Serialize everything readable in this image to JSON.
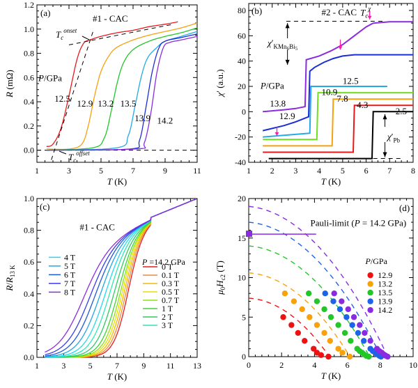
{
  "chart_data": [
    {
      "id": "a",
      "type": "line",
      "panel_label": "(a)",
      "title": "#1 - CAC",
      "xlabel": "T (K)",
      "ylabel": "R (mΩ)",
      "xlim": [
        1,
        11
      ],
      "ylim": [
        -0.1,
        1.2
      ],
      "xticks": [
        1,
        3,
        5,
        7,
        9,
        11
      ],
      "yticks": [
        0.0,
        0.2,
        0.4,
        0.6,
        0.8,
        1.0,
        1.2
      ],
      "ytick_labels": [
        "0.0",
        "0.2",
        "0.4",
        "0.6",
        "0.8",
        "1.0",
        "1.2"
      ],
      "legend_title": "P/GPa",
      "annotations": [
        "Tc onset",
        "Tc offset"
      ],
      "series": [
        {
          "name": "12.5",
          "color": "#e8191c",
          "x": [
            1.6,
            2.0,
            2.5,
            3.0,
            3.5,
            3.9,
            4.3,
            5.0,
            6.0,
            7.0,
            8.0,
            9.0,
            9.8
          ],
          "y": [
            0.03,
            0.05,
            0.18,
            0.45,
            0.75,
            0.88,
            0.91,
            0.94,
            0.97,
            0.99,
            1.02,
            1.04,
            1.06
          ]
        },
        {
          "name": "12.9",
          "color": "#f5a00f",
          "x": [
            1.6,
            3.0,
            3.8,
            4.2,
            4.6,
            5.0,
            5.5,
            6.0,
            7.0,
            8.0,
            9.0,
            10.0,
            11.0
          ],
          "y": [
            0.01,
            0.01,
            0.05,
            0.2,
            0.45,
            0.65,
            0.78,
            0.85,
            0.91,
            0.95,
            0.98,
            1.01,
            1.05
          ]
        },
        {
          "name": "13.2",
          "color": "#22c629",
          "x": [
            1.6,
            4.5,
            5.2,
            5.6,
            6.0,
            6.4,
            7.0,
            8.0,
            9.0,
            10.0,
            11.0
          ],
          "y": [
            0.0,
            0.02,
            0.1,
            0.3,
            0.55,
            0.72,
            0.83,
            0.9,
            0.94,
            0.97,
            1.01
          ]
        },
        {
          "name": "13.5",
          "color": "#22a9e8",
          "x": [
            1.6,
            6.0,
            6.7,
            7.1,
            7.5,
            7.9,
            8.5,
            9.0,
            10.0,
            11.0
          ],
          "y": [
            0.0,
            0.02,
            0.12,
            0.35,
            0.6,
            0.76,
            0.85,
            0.9,
            0.94,
            0.98
          ]
        },
        {
          "name": "13.9",
          "color": "#1a2ed6",
          "x": [
            1.6,
            6.8,
            7.4,
            7.8,
            8.2,
            8.6,
            9.0,
            10.0,
            11.0
          ],
          "y": [
            0.0,
            0.01,
            0.08,
            0.35,
            0.65,
            0.84,
            0.9,
            0.93,
            0.96
          ]
        },
        {
          "name": "14.2",
          "color": "#8a2be2",
          "x": [
            1.6,
            7.2,
            7.7,
            8.1,
            8.5,
            8.9,
            9.3,
            10.0,
            11.0
          ],
          "y": [
            0.0,
            0.01,
            0.06,
            0.3,
            0.65,
            0.85,
            0.89,
            0.91,
            0.94
          ]
        }
      ]
    },
    {
      "id": "b",
      "type": "line",
      "panel_label": "(b)",
      "title": "#2 - CAC",
      "xlabel": "T (K)",
      "ylabel": "χ' (a.u.)",
      "xlim": [
        1,
        8
      ],
      "ylim": [
        -40,
        80
      ],
      "xticks": [
        1,
        2,
        3,
        4,
        5,
        6,
        7,
        8
      ],
      "yticks": [
        -40,
        -20,
        0,
        20,
        40,
        60,
        80
      ],
      "legend_title": "P/GPa",
      "annotations": [
        "Tc χ",
        "χ'KMn6Bi5",
        "χ'Pb"
      ],
      "series": [
        {
          "name": "2.5",
          "color": "#000000",
          "x": [
            1.85,
            6.25,
            6.3,
            8.0
          ],
          "y": [
            -37,
            -37,
            0,
            0
          ]
        },
        {
          "name": "4.3",
          "color": "#e8191c",
          "x": [
            1.6,
            5.45,
            5.5,
            8.0
          ],
          "y": [
            -32,
            -32,
            5,
            5
          ]
        },
        {
          "name": "7.8",
          "color": "#f5a00f",
          "x": [
            1.6,
            4.55,
            4.6,
            8.0
          ],
          "y": [
            -27,
            -27,
            10,
            10
          ]
        },
        {
          "name": "10.9",
          "color": "#6fe01c",
          "x": [
            1.6,
            3.9,
            3.95,
            8.0
          ],
          "y": [
            -22,
            -22,
            15,
            15
          ]
        },
        {
          "name": "12.5",
          "color": "#22a9e8",
          "x": [
            1.6,
            3.6,
            3.65,
            6.9
          ],
          "y": [
            -20,
            -17,
            20,
            20
          ]
        },
        {
          "name": "12.9",
          "color": "#1a2ed6",
          "x": [
            1.6,
            2.5,
            3.0,
            3.55,
            3.6,
            3.8,
            4.2,
            4.6,
            5.0,
            5.5,
            6.0,
            8.0
          ],
          "y": [
            -15,
            -11,
            -8,
            -4,
            32,
            35,
            39,
            42,
            44,
            45,
            45,
            45
          ]
        },
        {
          "name": "13.8",
          "color": "#8a2be2",
          "x": [
            1.6,
            2.5,
            3.0,
            3.4,
            3.45,
            4.0,
            4.5,
            5.0,
            5.5,
            6.0,
            6.3,
            7.0,
            8.0
          ],
          "y": [
            0,
            1.5,
            2.5,
            4,
            41,
            44,
            48,
            53,
            60,
            67,
            70,
            71,
            71
          ]
        }
      ]
    },
    {
      "id": "c",
      "type": "line",
      "panel_label": "(c)",
      "title": "#1 - CAC",
      "xlabel": "T (K)",
      "ylabel": "R/R13 K",
      "xlim": [
        1,
        13
      ],
      "ylim": [
        0,
        1.0
      ],
      "xticks": [
        1,
        3,
        5,
        7,
        9,
        11,
        13
      ],
      "yticks": [
        0.0,
        0.2,
        0.4,
        0.6,
        0.8,
        1.0
      ],
      "ytick_labels": [
        "0.0",
        "0.2",
        "0.4",
        "0.6",
        "0.8",
        "1.0"
      ],
      "legend_title": "P = 14.2 GPa",
      "series": [
        {
          "name": "0 T",
          "color": "#e8191c",
          "tc": 8.3
        },
        {
          "name": "0.1 T",
          "color": "#f08a3a",
          "tc": 8.15
        },
        {
          "name": "0.3 T",
          "color": "#f5b800",
          "tc": 8.0
        },
        {
          "name": "0.5 T",
          "color": "#e6e000",
          "tc": 7.85
        },
        {
          "name": "0.7 T",
          "color": "#8ee010",
          "tc": 7.7
        },
        {
          "name": "1 T",
          "color": "#3cd630",
          "tc": 7.5
        },
        {
          "name": "2 T",
          "color": "#30c864",
          "tc": 7.2
        },
        {
          "name": "3 T",
          "color": "#2ee8b0",
          "tc": 6.85
        },
        {
          "name": "4 T",
          "color": "#22d8f0",
          "tc": 6.5
        },
        {
          "name": "5 T",
          "color": "#1ea6e8",
          "tc": 6.1
        },
        {
          "name": "6 T",
          "color": "#1e5ad6",
          "tc": 5.7
        },
        {
          "name": "7 T",
          "color": "#3a3ae8",
          "tc": 5.3
        },
        {
          "name": "8 T",
          "color": "#8a2be2",
          "tc": 4.8
        }
      ]
    },
    {
      "id": "d",
      "type": "scatter",
      "panel_label": "(d)",
      "xlabel": "T (K)",
      "ylabel": "μ0Hc2 (T)",
      "xlim": [
        0,
        10
      ],
      "ylim": [
        0,
        20
      ],
      "xticks": [
        0,
        2,
        4,
        6,
        8,
        10
      ],
      "yticks": [
        0,
        5,
        10,
        15,
        20
      ],
      "legend_title": "P/GPa",
      "pauli_limit": {
        "label": "Pauli-limit (P = 14.2 GPa)",
        "value": 15.5,
        "x_end": 4.1,
        "color": "#8a2be2"
      },
      "series": [
        {
          "name": "12.9",
          "color": "#ee1111",
          "hc2_0": 7.4,
          "tc": 4.9,
          "points": [
            [
              2.1,
              5
            ],
            [
              2.6,
              4
            ],
            [
              3.0,
              3
            ],
            [
              3.4,
              2
            ],
            [
              3.95,
              1
            ],
            [
              4.15,
              0.5
            ],
            [
              4.4,
              0.2
            ],
            [
              4.85,
              0
            ]
          ]
        },
        {
          "name": "13.2",
          "color": "#f7a20c",
          "hc2_0": 10.6,
          "tc": 6.15,
          "points": [
            [
              2.2,
              8
            ],
            [
              2.75,
              7
            ],
            [
              3.25,
              6
            ],
            [
              3.7,
              5
            ],
            [
              4.15,
              4
            ],
            [
              4.6,
              3
            ],
            [
              4.95,
              2
            ],
            [
              5.45,
              1
            ],
            [
              5.7,
              0.5
            ],
            [
              6.15,
              0
            ]
          ]
        },
        {
          "name": "13.5",
          "color": "#22c628",
          "hc2_0": 14.0,
          "tc": 7.35,
          "points": [
            [
              3.65,
              8
            ],
            [
              4.15,
              7
            ],
            [
              4.6,
              6
            ],
            [
              5.0,
              5
            ],
            [
              5.45,
              4
            ],
            [
              5.85,
              3
            ],
            [
              6.2,
              2
            ],
            [
              6.6,
              1
            ],
            [
              6.75,
              0.7
            ],
            [
              6.9,
              0.5
            ],
            [
              7.0,
              0.3
            ],
            [
              7.15,
              0.1
            ],
            [
              7.3,
              0
            ]
          ]
        },
        {
          "name": "13.9",
          "color": "#1c63ea",
          "hc2_0": 17.0,
          "tc": 8.05,
          "points": [
            [
              4.65,
              8
            ],
            [
              5.15,
              7
            ],
            [
              5.55,
              6
            ],
            [
              5.95,
              5
            ],
            [
              6.3,
              4
            ],
            [
              6.65,
              3
            ],
            [
              7.0,
              2
            ],
            [
              7.4,
              1
            ],
            [
              7.55,
              0.7
            ],
            [
              7.7,
              0.5
            ],
            [
              7.8,
              0.3
            ],
            [
              7.95,
              0.1
            ],
            [
              8.05,
              0
            ]
          ]
        },
        {
          "name": "14.2",
          "color": "#8a2be2",
          "hc2_0": 19.0,
          "tc": 8.45,
          "points": [
            [
              5.2,
              8
            ],
            [
              5.65,
              7
            ],
            [
              6.05,
              6
            ],
            [
              6.4,
              5
            ],
            [
              6.75,
              4
            ],
            [
              7.05,
              3
            ],
            [
              7.4,
              2
            ],
            [
              7.8,
              1
            ],
            [
              7.95,
              0.7
            ],
            [
              8.1,
              0.5
            ],
            [
              8.2,
              0.3
            ],
            [
              8.35,
              0.1
            ],
            [
              8.45,
              0
            ]
          ]
        }
      ]
    }
  ]
}
